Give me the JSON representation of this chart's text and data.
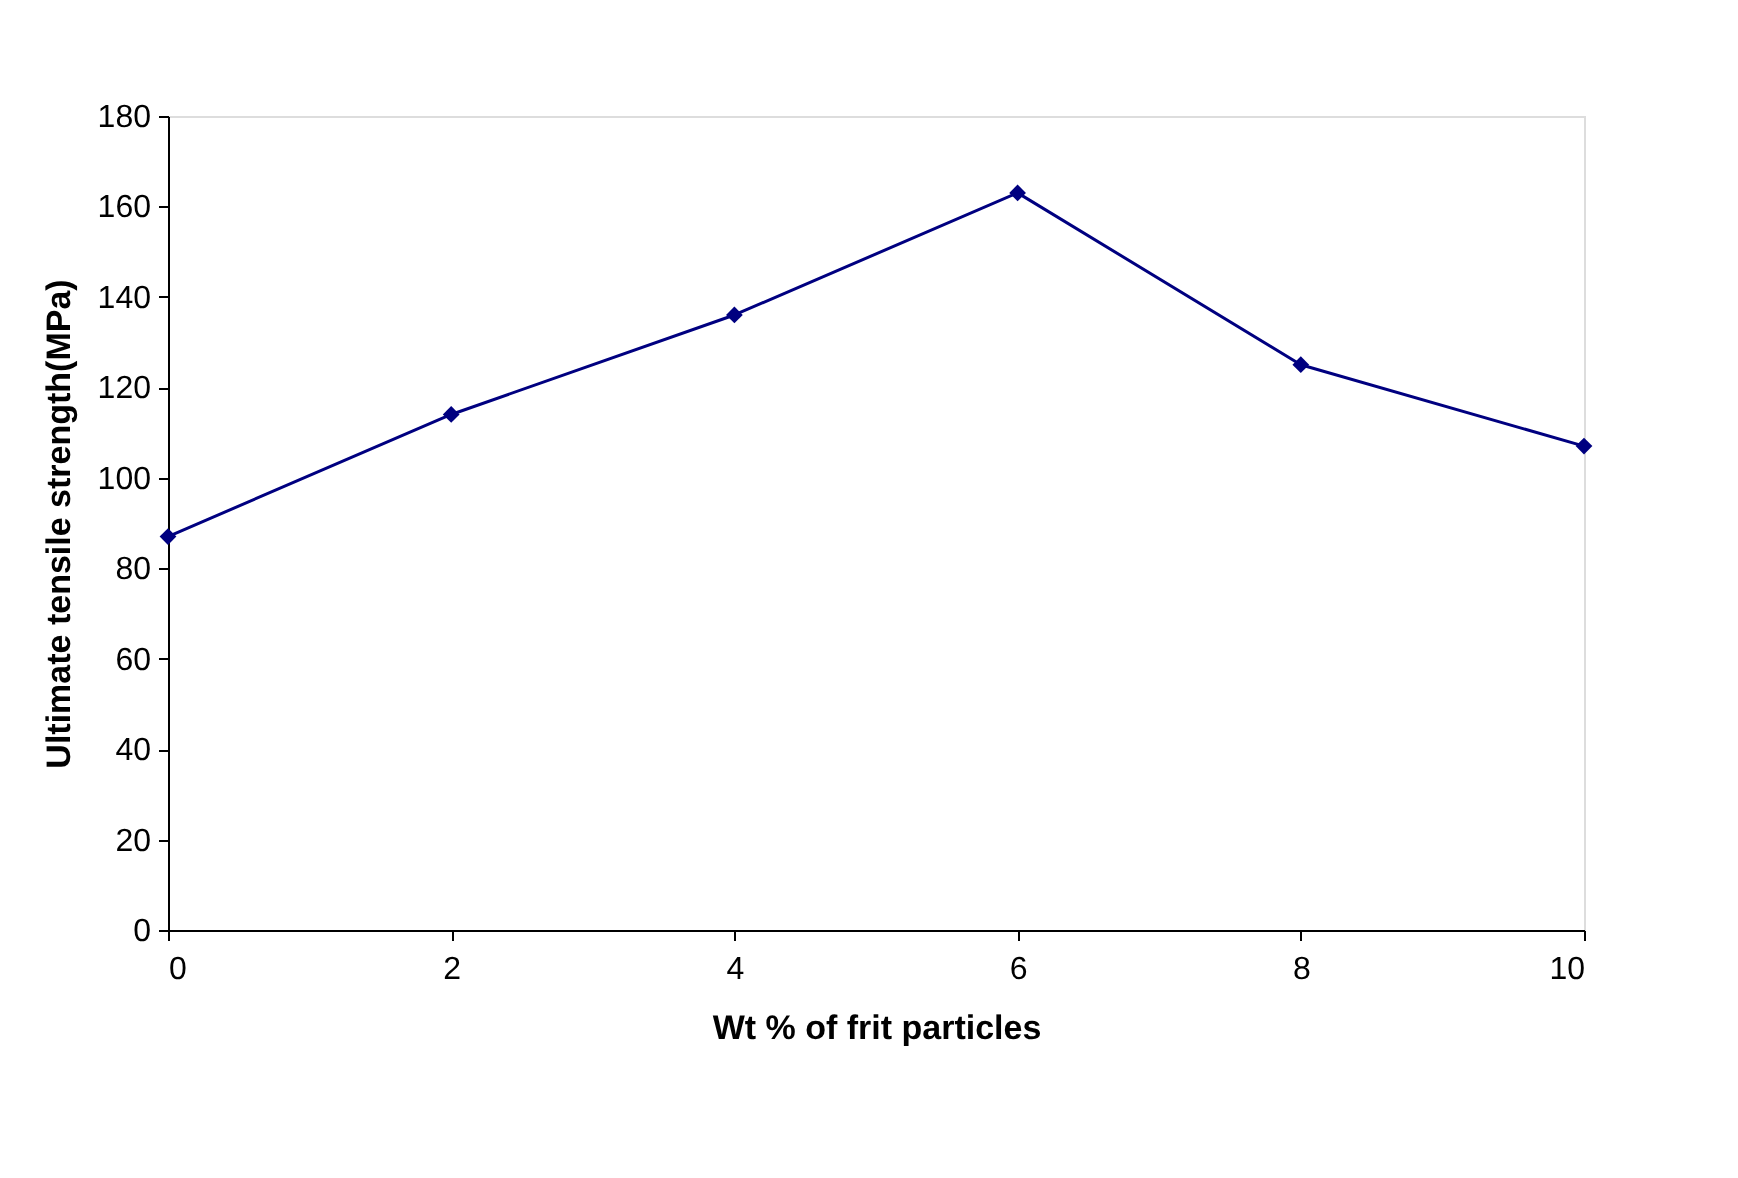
{
  "chart_data": {
    "type": "line",
    "xlabel": "Wt % of frit particles",
    "ylabel": "Ultimate tensile strength(MPa)",
    "x": [
      0,
      2,
      4,
      6,
      8,
      10
    ],
    "series": [
      {
        "color": "#000080",
        "values": [
          87,
          114,
          136,
          163,
          125,
          107
        ]
      }
    ],
    "xlim": [
      0,
      10
    ],
    "xticks": [
      0,
      2,
      4,
      6,
      8,
      10
    ],
    "ylim": [
      0,
      180
    ],
    "yticks": [
      0,
      20,
      40,
      60,
      80,
      100,
      120,
      140,
      160,
      180
    ],
    "grid": false,
    "marker": "diamond",
    "line_style": "solid"
  }
}
